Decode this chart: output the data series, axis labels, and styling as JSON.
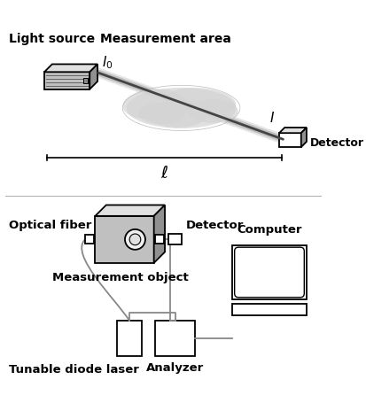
{
  "bg_color": "#ffffff",
  "lc": "#000000",
  "gray_fill": "#c0c0c0",
  "light_gray": "#e0e0e0",
  "dark_gray": "#909090",
  "wire_color": "#888888",
  "beam_color": "#444444",
  "cloud_color": "#d0d0d0",
  "texts": {
    "light_source": "Light source",
    "measurement_area": "Measurement area",
    "I0": "$I_0$",
    "I": "$I$",
    "ell": "$\\ell$",
    "detector_top": "Detector",
    "optical_fiber": "Optical fiber",
    "detector_bottom": "Detector",
    "measurement_object": "Measurement object",
    "computer": "Computer",
    "tunable_diode_laser": "Tunable diode laser",
    "analyzer": "Analyzer"
  }
}
